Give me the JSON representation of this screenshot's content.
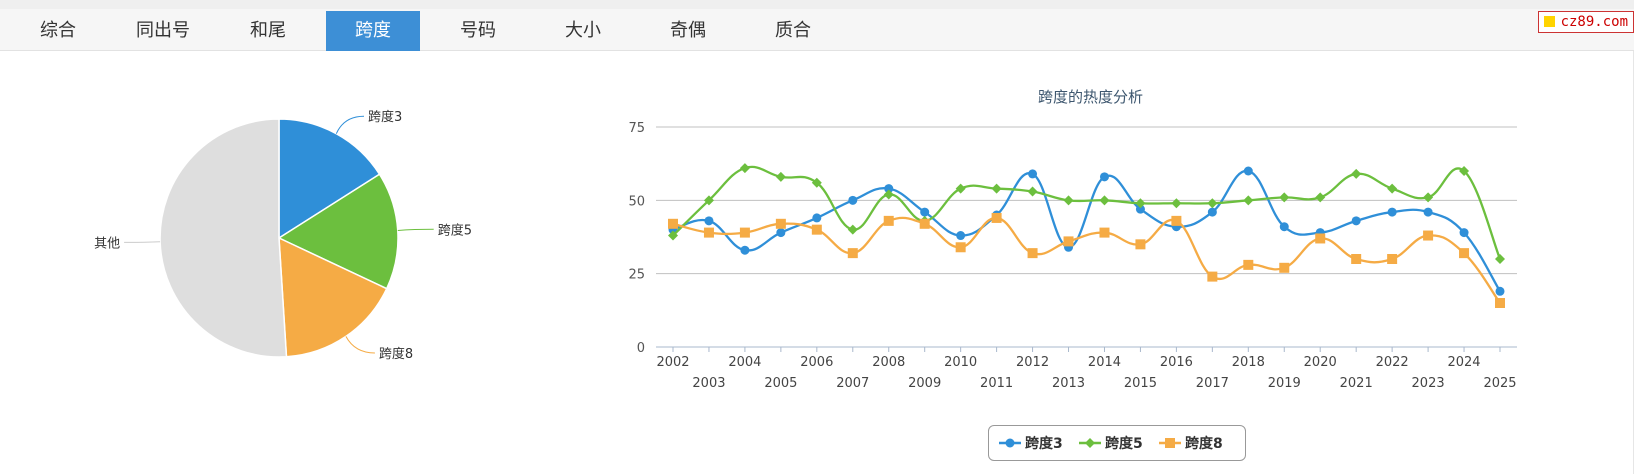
{
  "tabs": [
    {
      "label": "综合",
      "active": false
    },
    {
      "label": "同出号",
      "active": false
    },
    {
      "label": "和尾",
      "active": false
    },
    {
      "label": "跨度",
      "active": true
    },
    {
      "label": "号码",
      "active": false
    },
    {
      "label": "大小",
      "active": false
    },
    {
      "label": "奇偶",
      "active": false
    },
    {
      "label": "质合",
      "active": false
    }
  ],
  "badge": {
    "text": "cz89.com"
  },
  "chart_data": [
    {
      "type": "pie",
      "title": "",
      "slices": [
        {
          "label": "跨度3",
          "value": 16,
          "color": "#2f8fd8"
        },
        {
          "label": "跨度5",
          "value": 16,
          "color": "#6cbf3e"
        },
        {
          "label": "跨度8",
          "value": 17,
          "color": "#f5ab45"
        },
        {
          "label": "其他",
          "value": 51,
          "color": "#dedede"
        }
      ]
    },
    {
      "type": "line",
      "title": "跨度的热度分析",
      "xlabel": "",
      "ylabel": "",
      "x": [
        2002,
        2003,
        2004,
        2005,
        2006,
        2007,
        2008,
        2009,
        2010,
        2011,
        2012,
        2013,
        2014,
        2015,
        2016,
        2017,
        2018,
        2019,
        2020,
        2021,
        2022,
        2023,
        2024,
        2025
      ],
      "ylim": [
        0,
        75
      ],
      "yticks": [
        0,
        25,
        50,
        75
      ],
      "grid": true,
      "legend": "bottom",
      "series": [
        {
          "name": "跨度3",
          "color": "#2f8fd8",
          "marker": "circle",
          "values": [
            40,
            43,
            33,
            39,
            44,
            50,
            54,
            46,
            38,
            45,
            59,
            34,
            58,
            47,
            41,
            46,
            60,
            41,
            39,
            43,
            46,
            46,
            39,
            19
          ]
        },
        {
          "name": "跨度5",
          "color": "#6cbf3e",
          "marker": "diamond",
          "values": [
            38,
            50,
            61,
            58,
            56,
            40,
            52,
            43,
            54,
            54,
            53,
            50,
            50,
            49,
            49,
            49,
            50,
            51,
            51,
            59,
            54,
            51,
            60,
            30
          ]
        },
        {
          "name": "跨度8",
          "color": "#f5ab45",
          "marker": "square",
          "values": [
            42,
            39,
            39,
            42,
            40,
            32,
            43,
            42,
            34,
            44,
            32,
            36,
            39,
            35,
            43,
            24,
            28,
            27,
            37,
            30,
            30,
            38,
            32,
            15
          ]
        }
      ]
    }
  ]
}
